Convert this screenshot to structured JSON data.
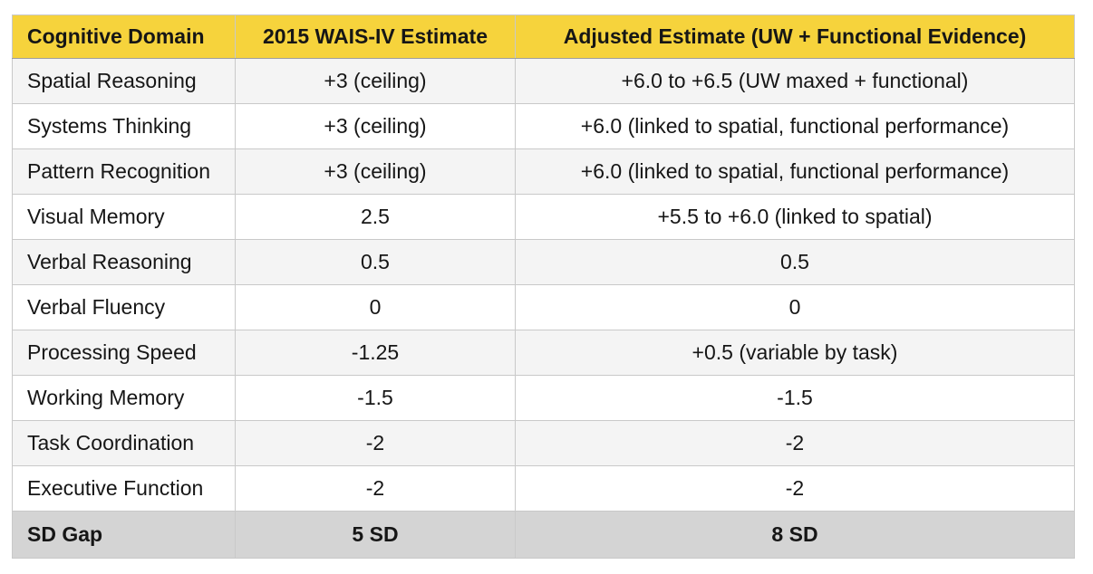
{
  "table": {
    "columns": [
      "Cognitive Domain",
      "2015 WAIS-IV Estimate",
      "Adjusted Estimate (UW + Functional Evidence)"
    ],
    "rows": [
      [
        "Spatial Reasoning",
        "+3 (ceiling)",
        "+6.0 to +6.5 (UW maxed + functional)"
      ],
      [
        "Systems Thinking",
        "+3 (ceiling)",
        "+6.0 (linked to spatial, functional performance)"
      ],
      [
        "Pattern Recognition",
        "+3 (ceiling)",
        "+6.0 (linked to spatial, functional performance)"
      ],
      [
        "Visual Memory",
        "2.5",
        "+5.5 to +6.0 (linked to spatial)"
      ],
      [
        "Verbal Reasoning",
        "0.5",
        "0.5"
      ],
      [
        "Verbal Fluency",
        "0",
        "0"
      ],
      [
        "Processing Speed",
        "-1.25",
        "+0.5 (variable by task)"
      ],
      [
        "Working Memory",
        "-1.5",
        "-1.5"
      ],
      [
        "Task Coordination",
        "-2",
        "-2"
      ],
      [
        "Executive Function",
        "-2",
        "-2"
      ]
    ],
    "footer": {
      "label": "SD Gap",
      "wais": "5 SD",
      "adjusted": "8 SD"
    }
  },
  "colors": {
    "header_bg": "#f6d33c",
    "stripe_row_bg": "#f4f4f4",
    "plain_row_bg": "#ffffff",
    "footer_bg": "#d4d4d4",
    "inner_border": "#c9c9c9",
    "outer_border": "#9e9e9e",
    "text": "#161616"
  },
  "chart_data": {
    "type": "table",
    "title": "",
    "columns": [
      "Cognitive Domain",
      "2015 WAIS-IV Estimate",
      "Adjusted Estimate (UW + Functional Evidence)"
    ],
    "rows": [
      [
        "Spatial Reasoning",
        "+3 (ceiling)",
        "+6.0 to +6.5 (UW maxed + functional)"
      ],
      [
        "Systems Thinking",
        "+3 (ceiling)",
        "+6.0 (linked to spatial, functional performance)"
      ],
      [
        "Pattern Recognition",
        "+3 (ceiling)",
        "+6.0 (linked to spatial, functional performance)"
      ],
      [
        "Visual Memory",
        "2.5",
        "+5.5 to +6.0 (linked to spatial)"
      ],
      [
        "Verbal Reasoning",
        "0.5",
        "0.5"
      ],
      [
        "Verbal Fluency",
        "0",
        "0"
      ],
      [
        "Processing Speed",
        "-1.25",
        "+0.5 (variable by task)"
      ],
      [
        "Working Memory",
        "-1.5",
        "-1.5"
      ],
      [
        "Task Coordination",
        "-2",
        "-2"
      ],
      [
        "Executive Function",
        "-2",
        "-2"
      ],
      [
        "SD Gap",
        "5 SD",
        "8 SD"
      ]
    ]
  }
}
